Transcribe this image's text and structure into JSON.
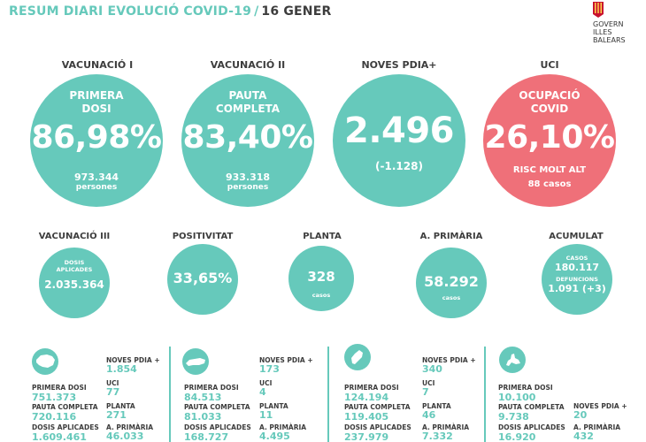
{
  "header": {
    "title": "RESUM DIARI EVOLUCIÓ COVID-19",
    "separator": "/",
    "date": "16 GENER",
    "logo_text": "GOVERN\nILLES\nBALEARS"
  },
  "colors": {
    "teal": "#66c9bb",
    "red": "#ef7079",
    "text": "#3d3d3d"
  },
  "top": {
    "vac1": {
      "category": "VACUNACIÓ I",
      "label1": "PRIMERA",
      "label2": "DOSI",
      "value": "86,98%",
      "count": "973.344",
      "unit": "persones"
    },
    "vac2": {
      "category": "VACUNACIÓ II",
      "label1": "PAUTA",
      "label2": "COMPLETA",
      "value": "83,40%",
      "count": "933.318",
      "unit": "persones"
    },
    "pdia": {
      "category": "NOVES PDIA+",
      "value": "2.496",
      "delta": "(-1.128)"
    },
    "uci": {
      "category": "UCI",
      "label1": "OCUPACIÓ",
      "label2": "COVID",
      "value": "26,10%",
      "risk": "RISC MOLT ALT",
      "cases": "88 casos"
    }
  },
  "middle": {
    "vac3": {
      "category": "VACUNACIÓ III",
      "label1": "DOSIS",
      "label2": "APLICADES",
      "value": "2.035.364"
    },
    "positivitat": {
      "category": "POSITIVITAT",
      "value": "33,65%"
    },
    "planta": {
      "category": "PLANTA",
      "value": "328",
      "unit": "casos"
    },
    "primaria": {
      "category": "A. PRIMÀRIA",
      "value": "58.292",
      "unit": "casos"
    },
    "acumulat": {
      "category": "ACUMULAT",
      "label_cases": "CASOS",
      "cases": "180.117",
      "label_deaths": "DEFUNCIONS",
      "deaths": "1.091 (+3)"
    }
  },
  "islands": [
    {
      "icon": "mallorca-icon",
      "labels": {
        "primera": "PRIMERA DOSI",
        "pauta": "PAUTA COMPLETA",
        "dosis": "DOSIS APLICADES",
        "pdia": "NOVES PDIA +",
        "uci": "UCI",
        "planta": "PLANTA",
        "primaria": "A. PRIMÀRIA"
      },
      "values": {
        "primera": "751.373",
        "pauta": "720.116",
        "dosis": "1.609.461",
        "pdia": "1.854",
        "uci": "77",
        "planta": "271",
        "primaria": "46.033"
      }
    },
    {
      "icon": "menorca-icon",
      "labels": {
        "primera": "PRIMERA DOSI",
        "pauta": "PAUTA COMPLETA",
        "dosis": "DOSIS APLICADES",
        "pdia": "NOVES PDIA +",
        "uci": "UCI",
        "planta": "PLANTA",
        "primaria": "A. PRIMÀRIA"
      },
      "values": {
        "primera": "84.513",
        "pauta": "81.033",
        "dosis": "168.727",
        "pdia": "173",
        "uci": "4",
        "planta": "11",
        "primaria": "4.495"
      }
    },
    {
      "icon": "eivissa-icon",
      "labels": {
        "primera": "PRIMERA DOSI",
        "pauta": "PAUTA COMPLETA",
        "dosis": "DOSIS APLICADES",
        "pdia": "NOVES PDIA +",
        "uci": "UCI",
        "planta": "PLANTA",
        "primaria": "A. PRIMÀRIA"
      },
      "values": {
        "primera": "124.194",
        "pauta": "119.405",
        "dosis": "237.979",
        "pdia": "340",
        "uci": "7",
        "planta": "46",
        "primaria": "7.332"
      }
    },
    {
      "icon": "formentera-icon",
      "labels": {
        "primera": "PRIMERA DOSI",
        "pauta": "PAUTA COMPLETA",
        "dosis": "DOSIS APLICADES",
        "pdia": "NOVES PDIA +",
        "primaria": "A. PRIMÀRIA"
      },
      "values": {
        "primera": "10.100",
        "pauta": "9.738",
        "dosis": "16.920",
        "pdia": "20",
        "primaria": "432"
      }
    }
  ]
}
